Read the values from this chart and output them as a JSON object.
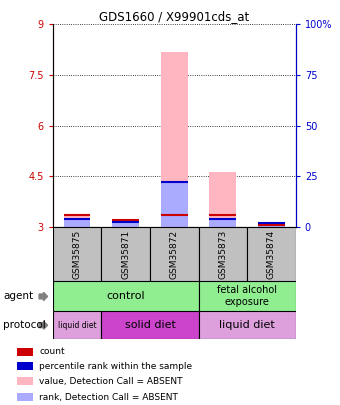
{
  "title": "GDS1660 / X99901cds_at",
  "samples": [
    "GSM35875",
    "GSM35871",
    "GSM35872",
    "GSM35873",
    "GSM35874"
  ],
  "ylim_left": [
    3,
    9
  ],
  "ylim_right": [
    0,
    100
  ],
  "yticks_left": [
    3,
    4.5,
    6,
    7.5,
    9
  ],
  "yticks_right": [
    0,
    25,
    50,
    75,
    100
  ],
  "ytick_labels_left": [
    "3",
    "4.5",
    "6",
    "7.5",
    "9"
  ],
  "ytick_labels_right": [
    "0",
    "25",
    "50",
    "75",
    "100%"
  ],
  "bar_bottom": 3.0,
  "pink_bar_top": [
    3.38,
    3.22,
    8.18,
    4.62,
    3.06
  ],
  "pink_bar_color": "#FFB6C1",
  "blue_bar_top": [
    3.24,
    3.16,
    4.36,
    3.27,
    3.15
  ],
  "blue_bar_color": "#AAAAFF",
  "red_line_pos": [
    3.335,
    3.195,
    3.34,
    3.36,
    3.04
  ],
  "red_line_color": "#CC0000",
  "blue_line_pos": [
    3.22,
    3.13,
    4.33,
    3.24,
    3.12
  ],
  "blue_line_color": "#0000CC",
  "bar_width": 0.55,
  "x_positions": [
    0,
    1,
    2,
    3,
    4
  ],
  "agent_green": "#90EE90",
  "protocol_light_purple": "#DDA0DD",
  "protocol_dark_purple": "#CC44CC",
  "left_axis_color": "#CC0000",
  "right_axis_color": "#0000CC",
  "sample_box_color": "#C0C0C0",
  "legend_items": [
    {
      "color": "#CC0000",
      "label": "count"
    },
    {
      "color": "#0000CC",
      "label": "percentile rank within the sample"
    },
    {
      "color": "#FFB6C1",
      "label": "value, Detection Call = ABSENT"
    },
    {
      "color": "#AAAAFF",
      "label": "rank, Detection Call = ABSENT"
    }
  ]
}
